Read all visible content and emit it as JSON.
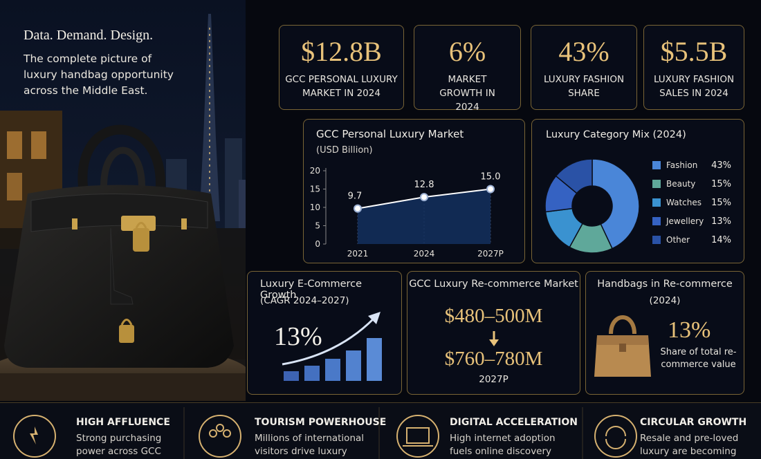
{
  "header": {
    "tagline": "Data. Demand. Design.",
    "description": "The complete picture of luxury handbag opportunity across the Middle East."
  },
  "stats": [
    {
      "value": "$12.8B",
      "label": "GCC PERSONAL LUXURY MARKET IN 2024"
    },
    {
      "value": "6%",
      "label": "MARKET GROWTH IN 2024"
    },
    {
      "value": "43%",
      "label": "LUXURY FASHION SHARE"
    },
    {
      "value": "$5.5B",
      "label": "LUXURY FASHION SALES IN 2024"
    }
  ],
  "chart_data": [
    {
      "type": "line",
      "title": "GCC Personal Luxury Market",
      "subtitle": "(USD Billion)",
      "categories": [
        "2021",
        "2024",
        "2027P"
      ],
      "values": [
        9.7,
        12.8,
        15.0
      ],
      "value_labels": [
        "9.7",
        "12.8",
        "15.0"
      ],
      "color": "#ffffff",
      "ylim": [
        0,
        20
      ],
      "yticks": [
        0,
        5,
        10,
        15,
        20
      ]
    },
    {
      "type": "pie",
      "title": "Luxury Category Mix (2024)",
      "categories": [
        "Fashion",
        "Beauty",
        "Watches",
        "Jewellery",
        "Other"
      ],
      "values": [
        43,
        15,
        15,
        13,
        14
      ],
      "value_labels": [
        "43%",
        "15%",
        "15%",
        "13%",
        "14%"
      ],
      "colors": [
        "#4a86d8",
        "#5fa89a",
        "#3a92d0",
        "#3562c2",
        "#2a52a6"
      ]
    }
  ],
  "ecommerce": {
    "title": "Luxury E-Commerce Growth",
    "subtitle": "(CAGR 2024–2027)",
    "value": "13%"
  },
  "recommerce": {
    "title": "GCC Luxury Re-commerce Market",
    "current": "$480–500M",
    "forecast": "$760–780M",
    "forecast_year": "2027P"
  },
  "handbags": {
    "title": "Handbags in Re-commerce",
    "subtitle": "(2024)",
    "value": "13%",
    "caption": "Share of total re-commerce value"
  },
  "drivers": [
    {
      "title": "HIGH AFFLUENCE",
      "text": "Strong purchasing power across GCC"
    },
    {
      "title": "TOURISM POWERHOUSE",
      "text": "Millions of international visitors drive luxury"
    },
    {
      "title": "DIGITAL ACCELERATION",
      "text": "High internet adoption fuels online discovery"
    },
    {
      "title": "CIRCULAR GROWTH",
      "text": "Resale and pre-loved luxury are becoming"
    }
  ]
}
